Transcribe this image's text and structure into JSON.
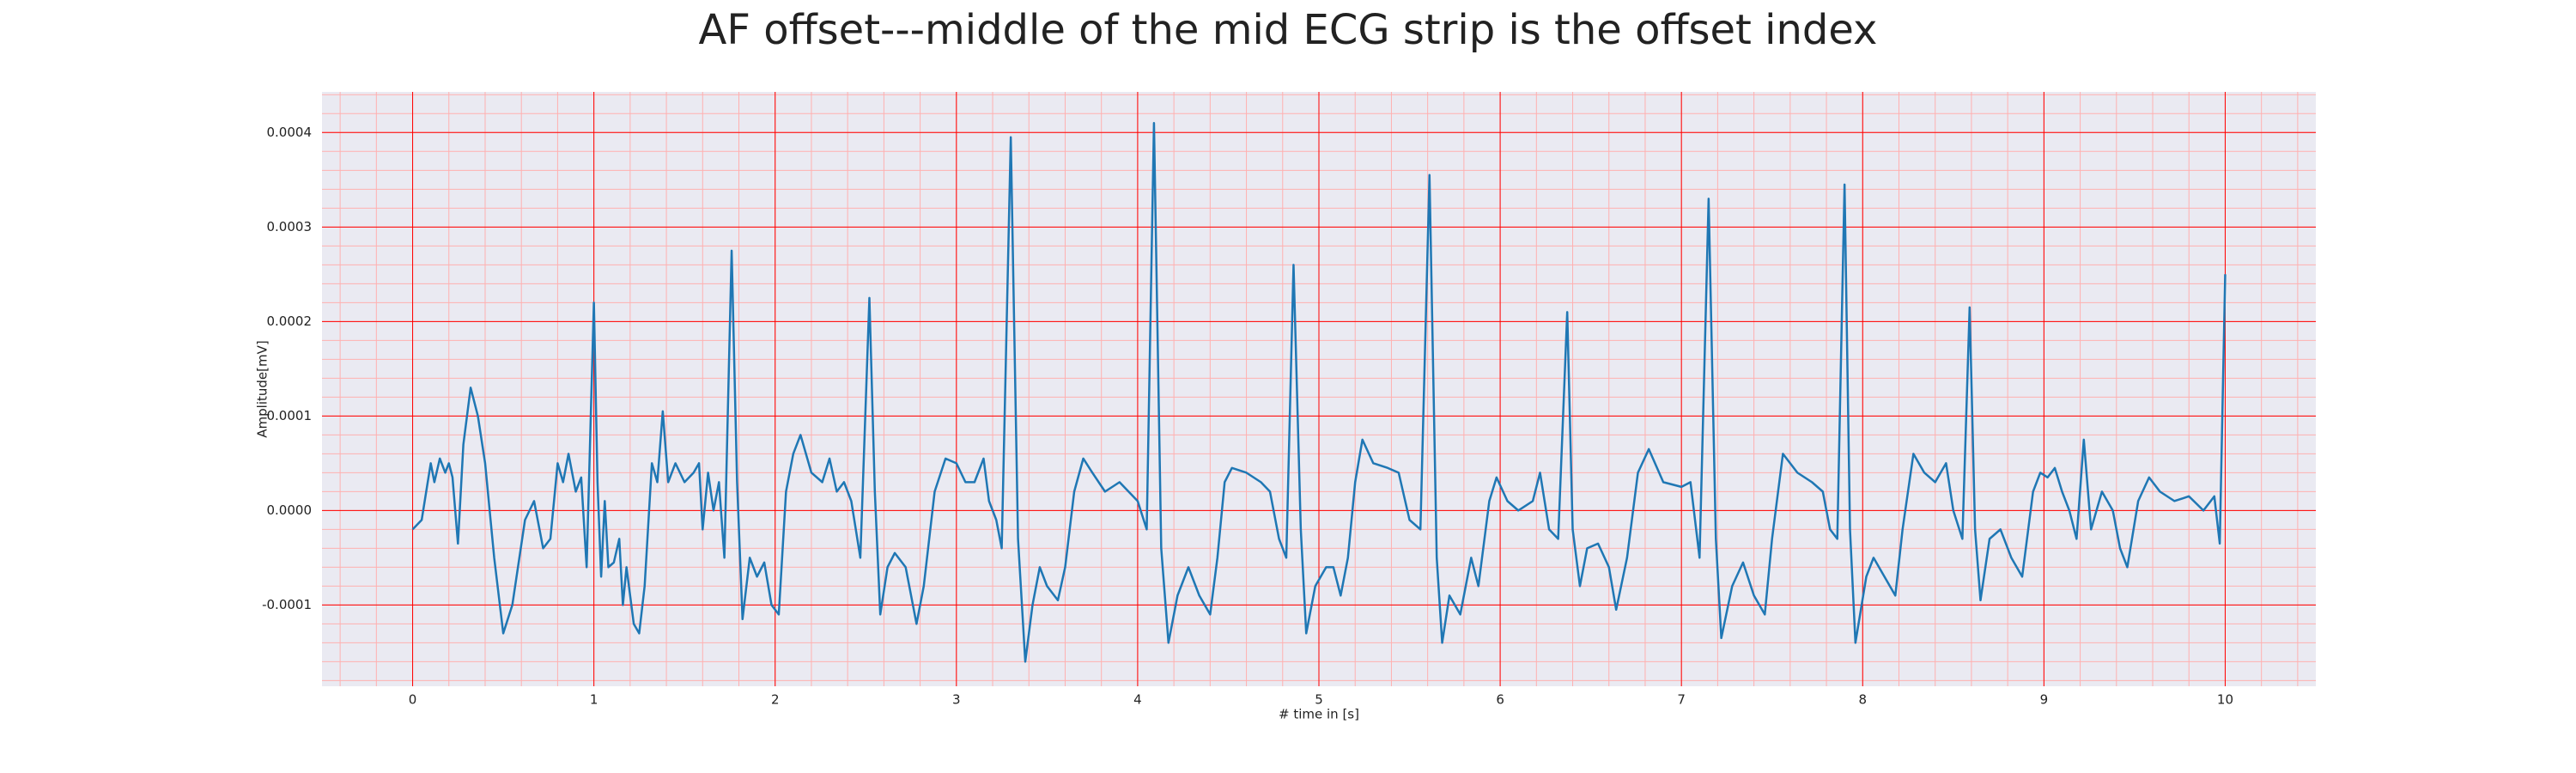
{
  "chart_data": {
    "type": "line",
    "title": "AF offset---middle of the mid ECG strip is the offset index",
    "xlabel": "# time in [s]",
    "ylabel": "Amplitude[mV]",
    "xlim": [
      -0.5,
      10.5
    ],
    "ylim": [
      -0.000186,
      0.000443
    ],
    "xticks": [
      0,
      1,
      2,
      3,
      4,
      5,
      6,
      7,
      8,
      9,
      10
    ],
    "yticks": [
      -0.0001,
      {
        "value": 0,
        "label": "0.0000"
      },
      0.0001,
      0.0002,
      0.0003,
      0.0004
    ],
    "grid": true,
    "grid_color": "#ff0000",
    "minor_grid_color": "#ffb0b0",
    "x_minor_step": 0.2,
    "y_minor_step": 2e-05,
    "series": [
      {
        "color": "#1f77b4",
        "x": [
          0.0,
          0.05,
          0.1,
          0.12,
          0.15,
          0.18,
          0.2,
          0.22,
          0.25,
          0.28,
          0.32,
          0.36,
          0.4,
          0.45,
          0.5,
          0.55,
          0.62,
          0.67,
          0.72,
          0.76,
          0.8,
          0.83,
          0.86,
          0.9,
          0.93,
          0.96,
          1.0,
          1.02,
          1.04,
          1.06,
          1.08,
          1.11,
          1.14,
          1.16,
          1.18,
          1.22,
          1.25,
          1.28,
          1.32,
          1.35,
          1.38,
          1.41,
          1.45,
          1.5,
          1.55,
          1.58,
          1.6,
          1.63,
          1.66,
          1.69,
          1.72,
          1.76,
          1.79,
          1.82,
          1.86,
          1.9,
          1.94,
          1.98,
          2.02,
          2.06,
          2.1,
          2.14,
          2.2,
          2.26,
          2.3,
          2.34,
          2.38,
          2.42,
          2.47,
          2.52,
          2.55,
          2.58,
          2.62,
          2.66,
          2.72,
          2.78,
          2.82,
          2.88,
          2.94,
          3.0,
          3.05,
          3.1,
          3.15,
          3.18,
          3.22,
          3.25,
          3.3,
          3.34,
          3.38,
          3.42,
          3.46,
          3.5,
          3.56,
          3.6,
          3.65,
          3.7,
          3.75,
          3.82,
          3.9,
          3.95,
          4.0,
          4.05,
          4.09,
          4.13,
          4.17,
          4.22,
          4.28,
          4.34,
          4.4,
          4.44,
          4.48,
          4.52,
          4.6,
          4.68,
          4.73,
          4.78,
          4.82,
          4.86,
          4.9,
          4.93,
          4.98,
          5.04,
          5.08,
          5.12,
          5.16,
          5.2,
          5.24,
          5.3,
          5.38,
          5.44,
          5.5,
          5.56,
          5.61,
          5.65,
          5.68,
          5.72,
          5.78,
          5.84,
          5.88,
          5.94,
          5.98,
          6.04,
          6.1,
          6.18,
          6.22,
          6.27,
          6.32,
          6.37,
          6.4,
          6.44,
          6.48,
          6.54,
          6.6,
          6.64,
          6.7,
          6.76,
          6.82,
          6.9,
          7.0,
          7.05,
          7.1,
          7.15,
          7.19,
          7.22,
          7.28,
          7.34,
          7.4,
          7.46,
          7.5,
          7.56,
          7.64,
          7.72,
          7.78,
          7.82,
          7.86,
          7.9,
          7.93,
          7.96,
          8.02,
          8.06,
          8.12,
          8.18,
          8.22,
          8.28,
          8.34,
          8.4,
          8.46,
          8.5,
          8.55,
          8.59,
          8.62,
          8.65,
          8.7,
          8.76,
          8.82,
          8.88,
          8.94,
          8.98,
          9.02,
          9.06,
          9.1,
          9.14,
          9.18,
          9.22,
          9.26,
          9.32,
          9.38,
          9.42,
          9.46,
          9.52,
          9.58,
          9.64,
          9.72,
          9.8,
          9.88,
          9.94,
          9.97,
          10.0
        ],
        "values": [
          -2e-05,
          -1e-05,
          5e-05,
          3e-05,
          5.5e-05,
          4e-05,
          5e-05,
          3.5e-05,
          -3.5e-05,
          7e-05,
          0.00013,
          0.0001,
          5e-05,
          -5e-05,
          -0.00013,
          -0.0001,
          -1e-05,
          1e-05,
          -4e-05,
          -3e-05,
          5e-05,
          3e-05,
          6e-05,
          2e-05,
          3.5e-05,
          -6e-05,
          0.00022,
          3e-05,
          -7e-05,
          1e-05,
          -6e-05,
          -5.5e-05,
          -3e-05,
          -0.0001,
          -6e-05,
          -0.00012,
          -0.00013,
          -8e-05,
          5e-05,
          3e-05,
          0.000105,
          3e-05,
          5e-05,
          3e-05,
          4e-05,
          5e-05,
          -2e-05,
          4e-05,
          0.0,
          3e-05,
          -5e-05,
          0.000275,
          3e-05,
          -0.000115,
          -5e-05,
          -7e-05,
          -5.5e-05,
          -0.0001,
          -0.00011,
          2e-05,
          6e-05,
          8e-05,
          4e-05,
          3e-05,
          5.5e-05,
          2e-05,
          3e-05,
          1e-05,
          -5e-05,
          0.000225,
          2e-05,
          -0.00011,
          -6e-05,
          -4.5e-05,
          -6e-05,
          -0.00012,
          -8e-05,
          2e-05,
          5.5e-05,
          5e-05,
          3e-05,
          3e-05,
          5.5e-05,
          1e-05,
          -1e-05,
          -4e-05,
          0.000395,
          -3e-05,
          -0.00016,
          -0.0001,
          -6e-05,
          -8e-05,
          -9.5e-05,
          -6e-05,
          2e-05,
          5.5e-05,
          4e-05,
          2e-05,
          3e-05,
          2e-05,
          1e-05,
          -2e-05,
          0.00041,
          -4e-05,
          -0.00014,
          -9e-05,
          -6e-05,
          -9e-05,
          -0.00011,
          -5e-05,
          3e-05,
          4.5e-05,
          4e-05,
          3e-05,
          2e-05,
          -3e-05,
          -5e-05,
          0.00026,
          -2e-05,
          -0.00013,
          -8e-05,
          -6e-05,
          -6e-05,
          -9e-05,
          -5e-05,
          3e-05,
          7.5e-05,
          5e-05,
          4.5e-05,
          4e-05,
          -1e-05,
          -2e-05,
          0.000355,
          -5e-05,
          -0.00014,
          -9e-05,
          -0.00011,
          -5e-05,
          -8e-05,
          1e-05,
          3.5e-05,
          1e-05,
          0.0,
          1e-05,
          4e-05,
          -2e-05,
          -3e-05,
          0.00021,
          -2e-05,
          -8e-05,
          -4e-05,
          -3.5e-05,
          -6e-05,
          -0.000105,
          -5e-05,
          4e-05,
          6.5e-05,
          3e-05,
          2.5e-05,
          3e-05,
          -5e-05,
          0.00033,
          -3e-05,
          -0.000135,
          -8e-05,
          -5.5e-05,
          -9e-05,
          -0.00011,
          -3e-05,
          6e-05,
          4e-05,
          3e-05,
          2e-05,
          -2e-05,
          -3e-05,
          0.000345,
          -2e-05,
          -0.00014,
          -7e-05,
          -5e-05,
          -7e-05,
          -9e-05,
          -2e-05,
          6e-05,
          4e-05,
          3e-05,
          5e-05,
          0.0,
          -3e-05,
          0.000215,
          -2e-05,
          -9.5e-05,
          -3e-05,
          -2e-05,
          -5e-05,
          -7e-05,
          2e-05,
          4e-05,
          3.5e-05,
          4.5e-05,
          2e-05,
          0.0,
          -3e-05,
          7.5e-05,
          -2e-05,
          2e-05,
          0.0,
          -4e-05,
          -6e-05,
          1e-05,
          3.5e-05,
          2e-05,
          1e-05,
          1.5e-05,
          0.0,
          1.5e-05,
          -3.5e-05,
          0.00025
        ]
      }
    ]
  }
}
